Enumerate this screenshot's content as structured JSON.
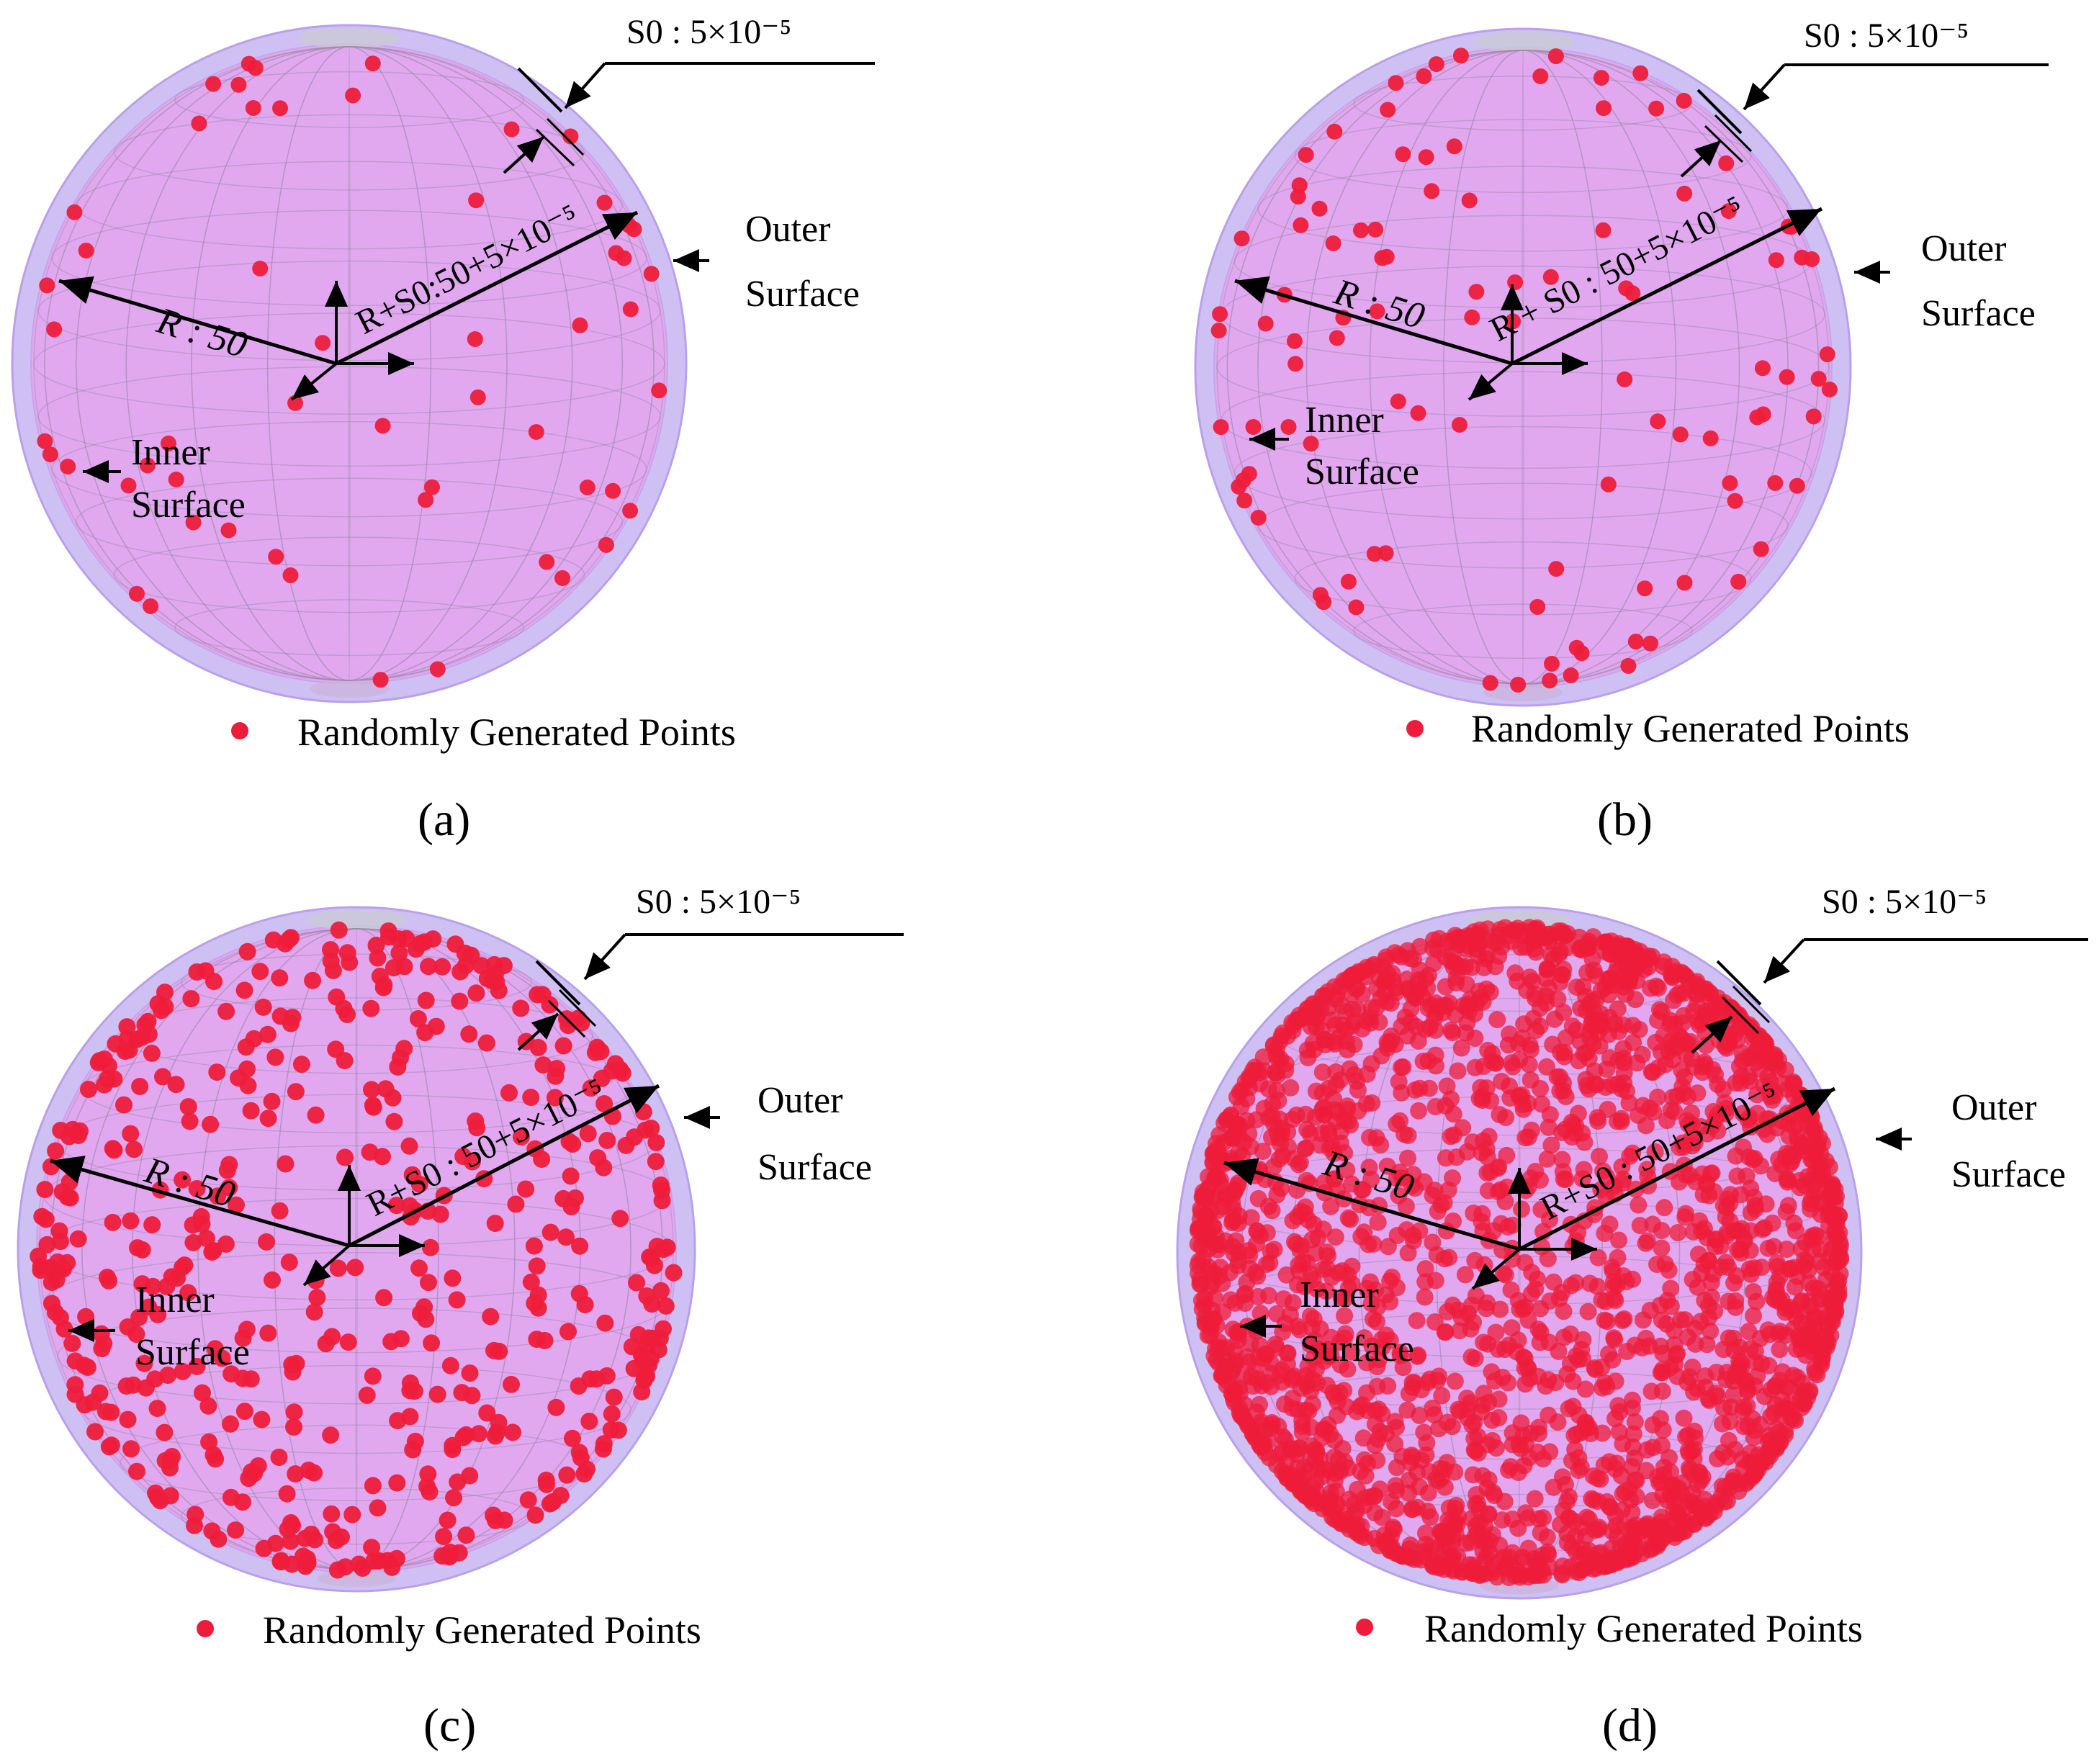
{
  "figure": {
    "panels": [
      {
        "id": "a",
        "caption": "(a)",
        "s0_label": "S0 : 5×10⁻⁵",
        "r_label": "R : 50",
        "rs0_label": "R+S0:50+5×10⁻⁵",
        "outer_label": [
          "Outer",
          "Surface"
        ],
        "inner_label": [
          "Inner",
          "Surface"
        ],
        "legend_label": "Randomly Generated Points",
        "point_count": 55
      },
      {
        "id": "b",
        "caption": "(b)",
        "s0_label": "S0 : 5×10⁻⁵",
        "r_label": "R : 50",
        "rs0_label": "R + S0 : 50+5×10⁻⁵",
        "outer_label": [
          "Outer",
          "Surface"
        ],
        "inner_label": [
          "Inner",
          "Surface"
        ],
        "legend_label": "Randomly Generated Points",
        "point_count": 105
      },
      {
        "id": "c",
        "caption": "(c)",
        "s0_label": "S0 : 5×10⁻⁵",
        "r_label": "R : 50",
        "rs0_label": "R+S0 : 50+5×10⁻⁵",
        "outer_label": [
          "Outer",
          "Surface"
        ],
        "inner_label": [
          "Inner",
          "Surface"
        ],
        "legend_label": "Randomly Generated Points",
        "point_count": 520
      },
      {
        "id": "d",
        "caption": "(d)",
        "s0_label": "S0 : 5×10⁻⁵",
        "r_label": "R : 50",
        "rs0_label": "R+S0 : 50+5×10⁻⁵",
        "outer_label": [
          "Outer",
          "Surface"
        ],
        "inner_label": [
          "Inner",
          "Surface"
        ],
        "legend_label": "Randomly Generated Points",
        "point_count": 2600
      }
    ],
    "colors": {
      "sphere_fill": "#e3a6ef",
      "sphere_edge": "#b9a0ea",
      "grid": "#9a8aa8",
      "point": "#ee1c3a",
      "text": "#000000"
    }
  }
}
